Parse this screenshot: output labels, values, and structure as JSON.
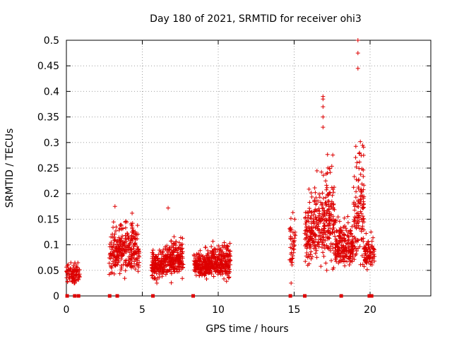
{
  "chart_data": {
    "type": "scatter",
    "title": "Day 180 of 2021, SRMTID for receiver ohi3",
    "xlabel": "GPS time / hours",
    "ylabel": "SRMTID / TECUs",
    "xlim": [
      0,
      24
    ],
    "ylim": [
      0,
      0.5
    ],
    "x_ticks": [
      0,
      5,
      10,
      15,
      20
    ],
    "x_tick_labels": [
      "0",
      "5",
      "10",
      "15",
      "20"
    ],
    "y_ticks": [
      0,
      0.05,
      0.1,
      0.15,
      0.2,
      0.25,
      0.3,
      0.35,
      0.4,
      0.45,
      0.5
    ],
    "y_tick_labels": [
      "0",
      "0.05",
      "0.1",
      "0.15",
      "0.2",
      "0.25",
      "0.3",
      "0.35",
      "0.4",
      "0.45",
      "0.5"
    ],
    "grid": true,
    "marker": "plus",
    "series_color": "#dd0000",
    "clusters": [
      {
        "x_start": 0.0,
        "x_end": 0.9,
        "y_center": 0.04,
        "y_spread": 0.012,
        "y_min": 0.025,
        "y_max": 0.065,
        "count": 90
      },
      {
        "x_start": 2.8,
        "x_end": 3.3,
        "y_center": 0.07,
        "y_spread": 0.03,
        "y_min": 0.03,
        "y_max": 0.175,
        "count": 60
      },
      {
        "x_start": 3.3,
        "x_end": 4.8,
        "y_center": 0.08,
        "y_spread": 0.03,
        "y_min": 0.02,
        "y_max": 0.165,
        "count": 220
      },
      {
        "x_start": 5.6,
        "x_end": 6.5,
        "y_center": 0.055,
        "y_spread": 0.015,
        "y_min": 0.025,
        "y_max": 0.095,
        "count": 150
      },
      {
        "x_start": 6.5,
        "x_end": 7.7,
        "y_center": 0.065,
        "y_spread": 0.02,
        "y_min": 0.025,
        "y_max": 0.13,
        "count": 200
      },
      {
        "x_start": 8.4,
        "x_end": 9.5,
        "y_center": 0.055,
        "y_spread": 0.015,
        "y_min": 0.02,
        "y_max": 0.095,
        "count": 200
      },
      {
        "x_start": 9.5,
        "x_end": 10.8,
        "y_center": 0.06,
        "y_spread": 0.02,
        "y_min": 0.02,
        "y_max": 0.125,
        "count": 220
      },
      {
        "x_start": 14.7,
        "x_end": 15.1,
        "y_center": 0.1,
        "y_spread": 0.03,
        "y_min": 0.05,
        "y_max": 0.175,
        "count": 40
      },
      {
        "x_start": 15.7,
        "x_end": 16.3,
        "y_center": 0.11,
        "y_spread": 0.035,
        "y_min": 0.06,
        "y_max": 0.28,
        "count": 100
      },
      {
        "x_start": 16.3,
        "x_end": 17.7,
        "y_center": 0.13,
        "y_spread": 0.05,
        "y_min": 0.05,
        "y_max": 0.395,
        "count": 240
      },
      {
        "x_start": 17.7,
        "x_end": 18.9,
        "y_center": 0.09,
        "y_spread": 0.025,
        "y_min": 0.05,
        "y_max": 0.16,
        "count": 200
      },
      {
        "x_start": 18.9,
        "x_end": 19.6,
        "y_center": 0.15,
        "y_spread": 0.07,
        "y_min": 0.05,
        "y_max": 0.5,
        "count": 120
      },
      {
        "x_start": 19.6,
        "x_end": 20.3,
        "y_center": 0.08,
        "y_spread": 0.02,
        "y_min": 0.04,
        "y_max": 0.125,
        "count": 80
      }
    ],
    "notable_points": [
      {
        "x": 14.8,
        "y": 0.025
      },
      {
        "x": 19.2,
        "y": 0.5
      },
      {
        "x": 19.2,
        "y": 0.475
      },
      {
        "x": 19.2,
        "y": 0.445
      },
      {
        "x": 16.9,
        "y": 0.39
      },
      {
        "x": 16.9,
        "y": 0.385
      },
      {
        "x": 16.9,
        "y": 0.37
      },
      {
        "x": 16.9,
        "y": 0.35
      },
      {
        "x": 16.9,
        "y": 0.33
      },
      {
        "x": 6.7,
        "y": 0.172
      },
      {
        "x": 3.2,
        "y": 0.175
      }
    ],
    "zero_markers_x": [
      0.05,
      0.55,
      0.8,
      2.85,
      3.35,
      5.7,
      8.35,
      14.75,
      15.7,
      18.1,
      19.95,
      20.1
    ]
  }
}
